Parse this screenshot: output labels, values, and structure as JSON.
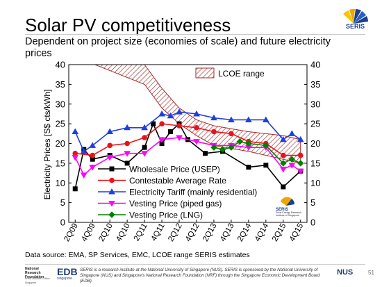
{
  "slide": {
    "title": "Solar PV competitiveness",
    "subtitle": "Dependent on project size (economies of scale) and future electricity prices",
    "source": "Data source: EMA, SP Services, EMC, LCOE range SERIS estimates",
    "footer_text": "SERIS is a research institute at the National University of Singapore (NUS). SERIS is sponsored by the National University of Singapore (NUS) and Singapore's National Research Foundation (NRF) through the Singapore Economic Development Board (EDB).",
    "page_number": "51",
    "logo_top_text": "SERIS",
    "chart_logo_text": "SERIS",
    "chart_logo_caption": "Solar Energy Research Institute of Singapore",
    "footer_logo_left": "National Research Foundation",
    "footer_logo_left_sub": "Prime Minister's Office Singapore",
    "footer_logo_edb": "EDB",
    "footer_logo_edb_sub": "singapore",
    "footer_logo_nus": "NUS",
    "colors": {
      "wholesale": "#000000",
      "contestable": "#e8141b",
      "tariff": "#1f3fe0",
      "vesting_pipe": "#ff00ff",
      "vesting_lng": "#008000",
      "lcoe": "#a52a2a"
    }
  },
  "chart_data": {
    "type": "line",
    "ylabel": "Electricity Prices [S$ cts/kWh]",
    "ylim": [
      0,
      40
    ],
    "yticks": [
      0,
      5,
      10,
      15,
      20,
      25,
      30,
      35,
      40
    ],
    "x_tick_labels": [
      "2Q09",
      "4Q09",
      "2Q10",
      "4Q10",
      "2Q11",
      "4Q11",
      "2Q12",
      "4Q12",
      "2Q13",
      "4Q13",
      "2Q14",
      "4Q14",
      "2Q15",
      "4Q15"
    ],
    "x_quarters": [
      "2Q09",
      "3Q09",
      "4Q09",
      "1Q10",
      "2Q10",
      "3Q10",
      "4Q10",
      "1Q11",
      "2Q11",
      "3Q11",
      "4Q11",
      "1Q12",
      "2Q12",
      "3Q12",
      "4Q12",
      "1Q13",
      "2Q13",
      "3Q13",
      "4Q13",
      "1Q14",
      "2Q14",
      "3Q14",
      "4Q14",
      "1Q15",
      "2Q15",
      "3Q15",
      "4Q15"
    ],
    "legend_position": "lower-left",
    "series": [
      {
        "name": "Wholesale Price (USEP)",
        "color_key": "wholesale",
        "marker": "square",
        "points": [
          [
            "2Q09",
            8.5
          ],
          [
            "3Q09",
            18.5
          ],
          [
            "4Q09",
            16
          ],
          [
            "2Q10",
            17
          ],
          [
            "4Q10",
            15
          ],
          [
            "2Q11",
            19
          ],
          [
            "3Q11",
            25
          ],
          [
            "4Q11",
            20
          ],
          [
            "1Q12",
            23
          ],
          [
            "2Q12",
            25
          ],
          [
            "3Q12",
            21
          ],
          [
            "1Q13",
            17.5
          ],
          [
            "3Q13",
            18
          ],
          [
            "2Q14",
            14
          ],
          [
            "4Q14",
            14.5
          ],
          [
            "2Q15",
            9
          ],
          [
            "4Q15",
            13
          ]
        ]
      },
      {
        "name": "Contestable Average Rate",
        "color_key": "contestable",
        "marker": "circle",
        "points": [
          [
            "2Q09",
            17.5
          ],
          [
            "4Q09",
            17
          ],
          [
            "2Q10",
            19.5
          ],
          [
            "4Q10",
            20
          ],
          [
            "2Q11",
            21.5
          ],
          [
            "4Q11",
            25
          ],
          [
            "2Q12",
            24.5
          ],
          [
            "4Q12",
            24
          ],
          [
            "2Q13",
            23
          ],
          [
            "4Q13",
            22.5
          ],
          [
            "2Q14",
            20.5
          ],
          [
            "4Q14",
            20
          ],
          [
            "2Q15",
            17
          ],
          [
            "4Q15",
            17
          ]
        ]
      },
      {
        "name": "Electricity Tariff (mainly residential)",
        "color_key": "tariff",
        "marker": "triangle",
        "points": [
          [
            "2Q09",
            23
          ],
          [
            "3Q09",
            18
          ],
          [
            "4Q09",
            19.5
          ],
          [
            "2Q10",
            23
          ],
          [
            "4Q10",
            24
          ],
          [
            "2Q11",
            24
          ],
          [
            "4Q11",
            27.5
          ],
          [
            "1Q12",
            27
          ],
          [
            "2Q12",
            28
          ],
          [
            "4Q12",
            27.5
          ],
          [
            "2Q13",
            26.5
          ],
          [
            "4Q13",
            26
          ],
          [
            "2Q14",
            26
          ],
          [
            "4Q14",
            26
          ],
          [
            "2Q15",
            21
          ],
          [
            "3Q15",
            22.5
          ],
          [
            "4Q15",
            21
          ]
        ]
      },
      {
        "name": "Vesting Price (piped gas)",
        "color_key": "vesting_pipe",
        "marker": "triangle-down",
        "points": [
          [
            "2Q09",
            16.5
          ],
          [
            "3Q09",
            12
          ],
          [
            "4Q09",
            14
          ],
          [
            "2Q10",
            16.5
          ],
          [
            "4Q10",
            17.5
          ],
          [
            "2Q11",
            17.5
          ],
          [
            "4Q11",
            21
          ],
          [
            "2Q12",
            21.5
          ],
          [
            "4Q12",
            20.5
          ],
          [
            "2Q13",
            19.5
          ],
          [
            "4Q13",
            19.5
          ],
          [
            "2Q14",
            19
          ],
          [
            "4Q14",
            19
          ],
          [
            "2Q15",
            13.5
          ],
          [
            "3Q15",
            14.5
          ],
          [
            "4Q15",
            13
          ]
        ]
      },
      {
        "name": "Vesting Price (LNG)",
        "color_key": "vesting_lng",
        "marker": "diamond",
        "points": [
          [
            "2Q13",
            19
          ],
          [
            "3Q13",
            18.5
          ],
          [
            "4Q13",
            19
          ],
          [
            "1Q14",
            20.5
          ],
          [
            "2Q14",
            20
          ],
          [
            "4Q14",
            19.5
          ],
          [
            "2Q15",
            15
          ],
          [
            "3Q15",
            16
          ],
          [
            "4Q15",
            15
          ]
        ]
      }
    ],
    "band": {
      "name": "LCOE range",
      "color_key": "lcoe",
      "upper": [
        [
          "2Q09",
          48
        ],
        [
          "2Q11",
          40
        ],
        [
          "4Q11",
          34
        ],
        [
          "2Q12",
          29
        ],
        [
          "4Q12",
          26
        ],
        [
          "2Q13",
          24.5
        ],
        [
          "2Q14",
          23
        ],
        [
          "2Q15",
          22
        ],
        [
          "4Q15",
          21
        ]
      ],
      "lower": [
        [
          "2Q09",
          42
        ],
        [
          "2Q11",
          35
        ],
        [
          "4Q11",
          29
        ],
        [
          "2Q12",
          25
        ],
        [
          "4Q12",
          22
        ],
        [
          "2Q13",
          19.5
        ],
        [
          "2Q14",
          18
        ],
        [
          "2Q15",
          16
        ],
        [
          "4Q15",
          15
        ]
      ]
    }
  }
}
